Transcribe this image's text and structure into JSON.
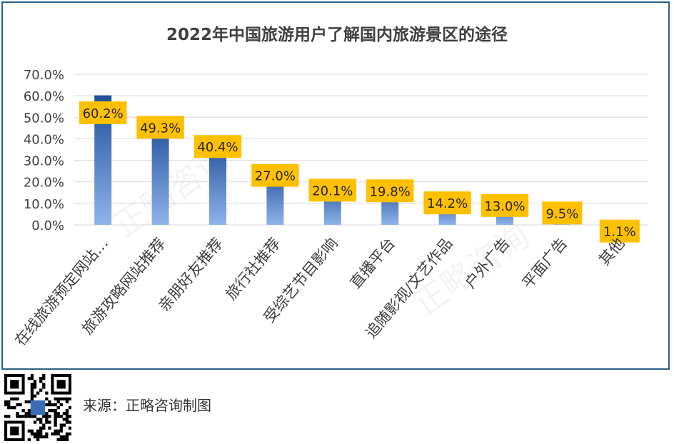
{
  "source": "来源：正略咨询制图",
  "watermark": "正略咨询",
  "chart_data": {
    "type": "bar",
    "title": "2022年中国旅游用户了解国内旅游景区的途径",
    "categories": [
      "在线旅游预定网站…",
      "旅游攻略网站推荐",
      "亲朋好友推荐",
      "旅行社推荐",
      "受综艺节目影响",
      "直播平台",
      "追随影视/文艺作品",
      "户外广告",
      "平面广告",
      "其他"
    ],
    "values": [
      60.2,
      49.3,
      40.4,
      27.0,
      20.1,
      19.8,
      14.2,
      13.0,
      9.5,
      1.1
    ],
    "value_labels": [
      "60.2%",
      "49.3%",
      "40.4%",
      "27.0%",
      "20.1%",
      "19.8%",
      "14.2%",
      "13.0%",
      "9.5%",
      "1.1%"
    ],
    "yticks": [
      "0.0%",
      "10.0%",
      "20.0%",
      "30.0%",
      "40.0%",
      "50.0%",
      "60.0%",
      "70.0%"
    ],
    "ylim": [
      0,
      70
    ],
    "grid": true,
    "colors": {
      "bar_top": "#1f4e9a",
      "bar_bottom": "#8fb4ea",
      "label_bg": "#ffc000",
      "grid": "#d9d9d9",
      "frame": "#2e5f8a"
    }
  }
}
